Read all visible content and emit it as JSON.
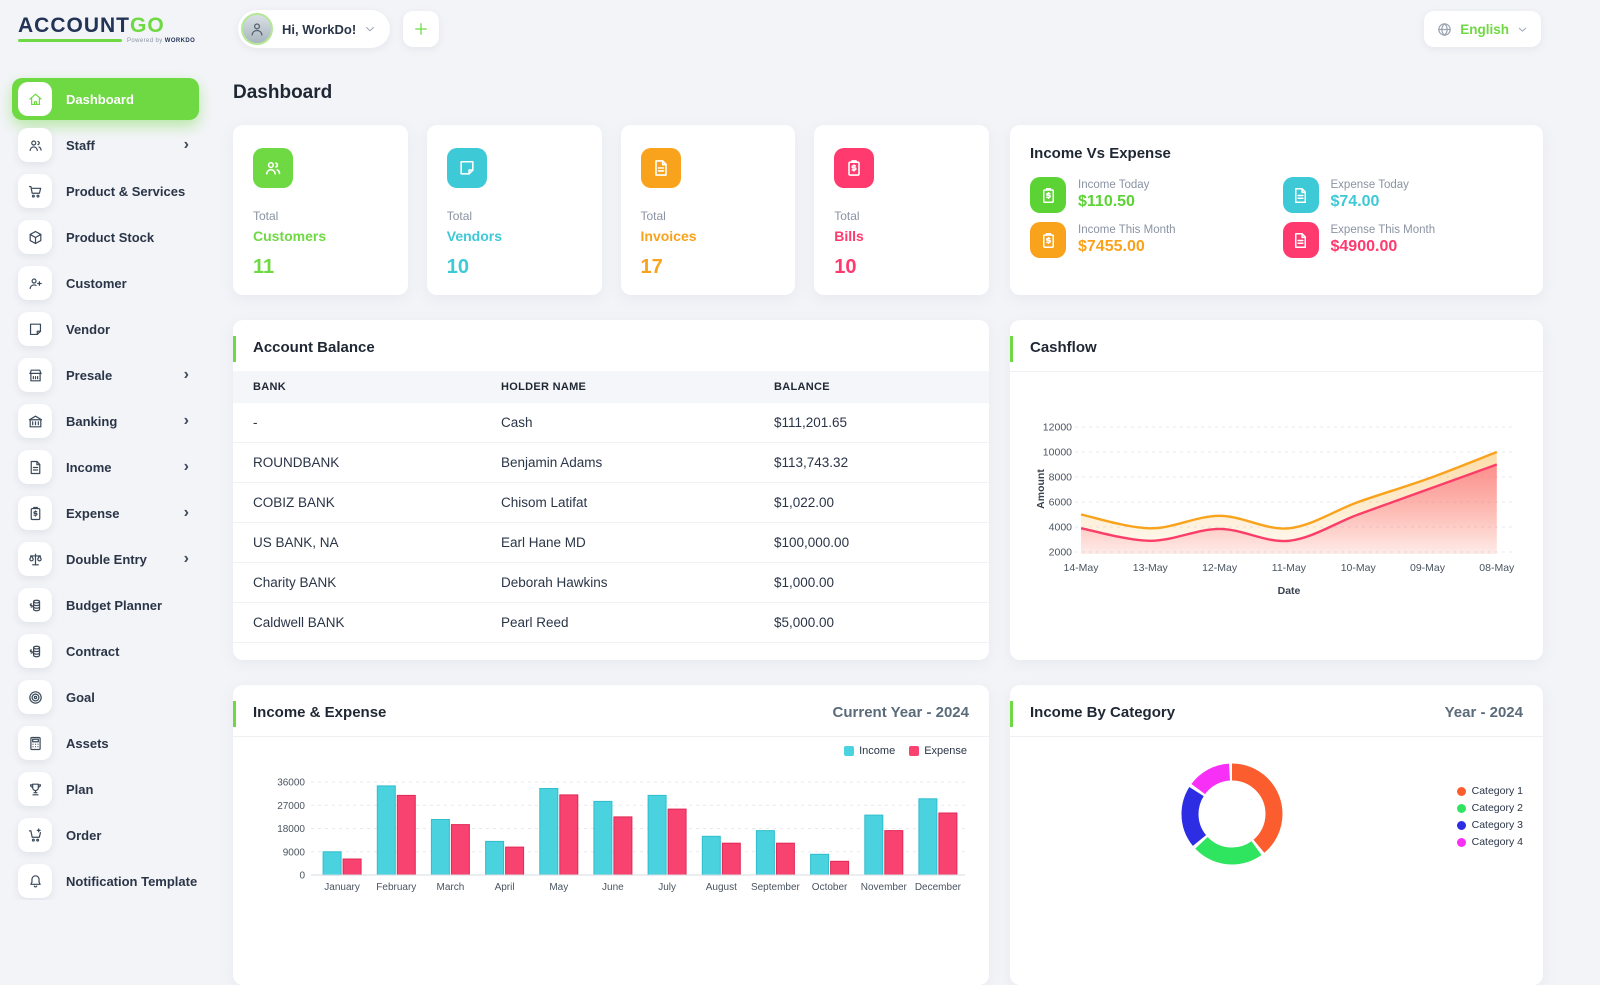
{
  "brand": {
    "name_primary": "ACCOUNT",
    "name_secondary": "GO",
    "tagline_prefix": "Powered by ",
    "tagline_brand": "WORKDO"
  },
  "icons": {
    "globe": "globe",
    "chevron_down": "chevron-down",
    "plus": "plus",
    "avatar_user": "user"
  },
  "header": {
    "greeting": "Hi, WorkDo!",
    "language": "English",
    "page_title": "Dashboard"
  },
  "sidebar": {
    "items": [
      {
        "label": "Dashboard",
        "icon": "home",
        "active": true,
        "expandable": false
      },
      {
        "label": "Staff",
        "icon": "users",
        "expandable": true
      },
      {
        "label": "Product & Services",
        "icon": "cart",
        "expandable": false
      },
      {
        "label": "Product Stock",
        "icon": "box",
        "expandable": false
      },
      {
        "label": "Customer",
        "icon": "user-plus",
        "expandable": false
      },
      {
        "label": "Vendor",
        "icon": "note",
        "expandable": false
      },
      {
        "label": "Presale",
        "icon": "store",
        "expandable": true
      },
      {
        "label": "Banking",
        "icon": "bank",
        "expandable": true
      },
      {
        "label": "Income",
        "icon": "file",
        "expandable": true
      },
      {
        "label": "Expense",
        "icon": "clipboard-dollar",
        "expandable": true
      },
      {
        "label": "Double Entry",
        "icon": "scale",
        "expandable": true
      },
      {
        "label": "Budget Planner",
        "icon": "coins",
        "expandable": false
      },
      {
        "label": "Contract",
        "icon": "coins",
        "expandable": false
      },
      {
        "label": "Goal",
        "icon": "target",
        "expandable": false
      },
      {
        "label": "Assets",
        "icon": "calculator",
        "expandable": false
      },
      {
        "label": "Plan",
        "icon": "trophy",
        "expandable": false
      },
      {
        "label": "Order",
        "icon": "cart-plus",
        "expandable": false
      },
      {
        "label": "Notification Template",
        "icon": "bell",
        "expandable": false
      }
    ]
  },
  "stats": [
    {
      "prefix": "Total",
      "label": "Customers",
      "value": "11",
      "color": "#6fd943",
      "icon": "users"
    },
    {
      "prefix": "Total",
      "label": "Vendors",
      "value": "10",
      "color": "#3ec9d6",
      "icon": "note"
    },
    {
      "prefix": "Total",
      "label": "Invoices",
      "value": "17",
      "color": "#f9a21b",
      "icon": "file"
    },
    {
      "prefix": "Total",
      "label": "Bills",
      "value": "10",
      "color": "#ff3a6e",
      "icon": "clipboard-dollar"
    }
  ],
  "income_vs_expense": {
    "title": "Income Vs Expense",
    "items": [
      {
        "label": "Income Today",
        "value": "$110.50",
        "color": "#5cd335",
        "icon": "clipboard-dollar"
      },
      {
        "label": "Expense Today",
        "value": "$74.00",
        "color": "#3ec9d6",
        "icon": "file"
      },
      {
        "label": "Income This Month",
        "value": "$7455.00",
        "color": "#f9a21b",
        "icon": "clipboard-dollar"
      },
      {
        "label": "Expense This Month",
        "value": "$4900.00",
        "color": "#ff3a6e",
        "icon": "file"
      }
    ]
  },
  "account_balance": {
    "title": "Account Balance",
    "columns": [
      "BANK",
      "HOLDER NAME",
      "BALANCE"
    ],
    "rows": [
      [
        "-",
        "Cash",
        "$111,201.65"
      ],
      [
        "ROUNDBANK",
        "Benjamin Adams",
        "$113,743.32"
      ],
      [
        "COBIZ BANK",
        "Chisom Latifat",
        "$1,022.00"
      ],
      [
        "US BANK, NA",
        "Earl Hane MD",
        "$100,000.00"
      ],
      [
        "Charity BANK",
        "Deborah Hawkins",
        "$1,000.00"
      ],
      [
        "Caldwell BANK",
        "Pearl Reed",
        "$5,000.00"
      ]
    ]
  },
  "chart_data": [
    {
      "type": "area",
      "title": "Cashflow",
      "x": [
        "14-May",
        "13-May",
        "12-May",
        "11-May",
        "10-May",
        "09-May",
        "08-May"
      ],
      "xlabel": "Date",
      "ylabel": "Amount",
      "ylim": [
        2000,
        12000
      ],
      "yticks": [
        2000,
        4000,
        6000,
        8000,
        10000,
        12000
      ],
      "grid": "dashed-horizontal",
      "series": [
        {
          "name": "upper_line",
          "color": "#f9a21b",
          "values": [
            5000,
            3900,
            4900,
            3900,
            6000,
            7850,
            10000
          ]
        },
        {
          "name": "lower_line",
          "color": "#fb3e68",
          "values": [
            3900,
            2900,
            3850,
            2900,
            5000,
            7000,
            9000
          ]
        }
      ]
    },
    {
      "type": "bar",
      "title": "Income & Expense",
      "subtitle": "Current Year - 2024",
      "categories": [
        "January",
        "February",
        "March",
        "April",
        "May",
        "June",
        "July",
        "August",
        "September",
        "October",
        "November",
        "December"
      ],
      "ylim": [
        0,
        36000
      ],
      "yticks": [
        0,
        9000,
        18000,
        27000,
        36000
      ],
      "grid": "dashed-horizontal",
      "legend_position": "top-right",
      "series": [
        {
          "name": "Income",
          "color": "#4ad2de",
          "border": "#2fbfce",
          "values": [
            9000,
            34500,
            21500,
            13000,
            33500,
            28500,
            30800,
            15000,
            17200,
            8000,
            23200,
            29500
          ]
        },
        {
          "name": "Expense",
          "color": "#f8426f",
          "border": "#e02a57",
          "values": [
            6200,
            30800,
            19500,
            10800,
            31000,
            22500,
            25500,
            12300,
            12300,
            5300,
            17200,
            24000
          ]
        }
      ]
    },
    {
      "type": "pie",
      "title": "Income By Category",
      "subtitle": "Year - 2024",
      "labels": [
        "Category 1",
        "Category 2",
        "Category 3",
        "Category 4"
      ],
      "values": [
        40,
        24,
        21,
        15
      ],
      "colors": [
        "#fb5d2e",
        "#2fe55f",
        "#2d2de4",
        "#f72ff7"
      ],
      "legend_position": "right",
      "donut": true
    }
  ]
}
